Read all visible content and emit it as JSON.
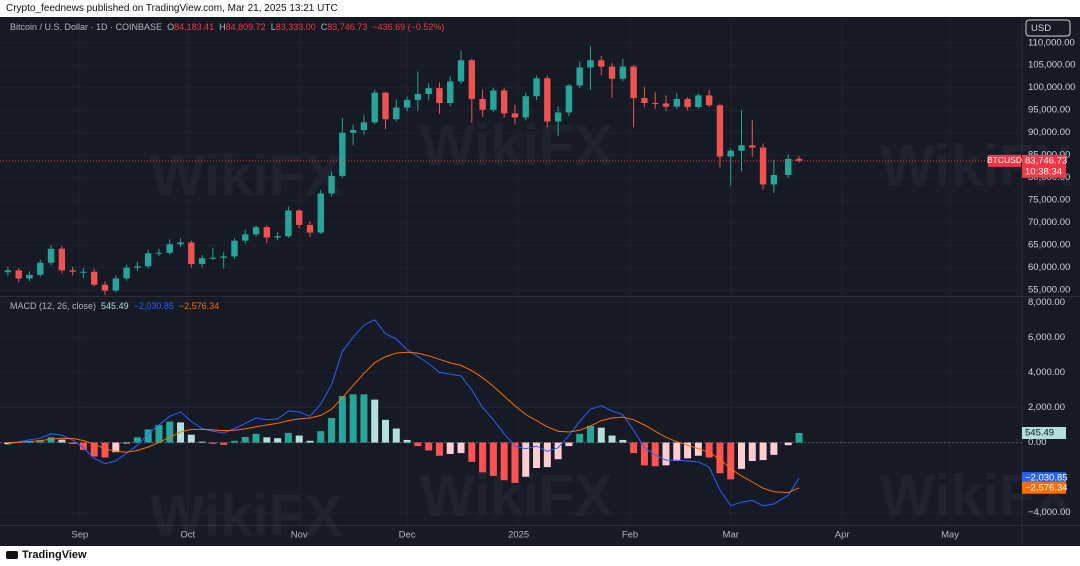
{
  "header": "Crypto_feednews published on TradingView.com, Mar 21, 2025 13:21 UTC",
  "footer_logo": "TradingView",
  "watermark": "WikiFX",
  "chart_data": [
    {
      "type": "candlestick",
      "title": "Bitcoin / U.S. Dollar · 1D · COINBASE",
      "ohlc_legend": [
        {
          "letter": "O",
          "text": "84,183.41"
        },
        {
          "letter": "H",
          "text": "84,809.72"
        },
        {
          "letter": "L",
          "text": "83,333.00"
        },
        {
          "letter": "C",
          "text": "83,746.73"
        }
      ],
      "change_label": "−436.69 (−0.52%)",
      "currency": "USD",
      "symbol": "BTCUSD",
      "countdown": "10:38:34",
      "last_label": "83,746.73",
      "x": [
        0,
        3,
        6,
        9,
        12,
        15,
        18,
        21,
        24,
        27,
        30,
        33,
        36,
        39,
        42,
        45,
        48,
        51,
        54,
        57,
        60,
        63,
        66,
        69,
        72,
        75,
        78,
        81,
        84,
        87,
        90,
        93,
        96,
        99,
        102,
        105,
        108,
        111,
        114,
        117,
        120,
        123,
        126,
        129,
        132,
        135,
        138,
        141,
        144,
        147,
        150,
        153,
        156,
        159,
        162,
        165,
        168,
        171,
        174,
        177,
        180,
        183,
        186,
        189,
        192,
        195,
        198,
        201,
        204,
        207,
        210,
        213,
        217,
        220
      ],
      "open": [
        59000,
        59400,
        57600,
        58400,
        61100,
        64200,
        59400,
        59100,
        59100,
        56200,
        54900,
        57600,
        60000,
        60300,
        63200,
        63300,
        65200,
        65600,
        60800,
        62100,
        62200,
        62500,
        66000,
        67400,
        69000,
        66700,
        67000,
        72700,
        69500,
        67800,
        76500,
        80400,
        90000,
        90600,
        92300,
        98900,
        93000,
        95600,
        97300,
        98600,
        99900,
        96600,
        101400,
        106100,
        97500,
        95100,
        99400,
        94300,
        93400,
        98100,
        102100,
        92500,
        94500,
        100500,
        104500,
        106100,
        104700,
        102000,
        104700,
        97700,
        96600,
        96500,
        95800,
        97500,
        95700,
        98300,
        96100,
        84700,
        86000,
        87200,
        86700,
        78500,
        80600,
        84183.41
      ],
      "high": [
        60200,
        59900,
        59200,
        61800,
        65000,
        64800,
        60200,
        59900,
        59800,
        57000,
        58300,
        60700,
        61300,
        64000,
        64200,
        66300,
        66500,
        66000,
        62800,
        64400,
        63400,
        66500,
        68400,
        69400,
        69400,
        68000,
        73600,
        73000,
        70300,
        77300,
        81400,
        93300,
        91800,
        94000,
        99600,
        99100,
        97400,
        98000,
        103600,
        101000,
        101200,
        102500,
        108300,
        106500,
        99500,
        100000,
        100000,
        96200,
        98900,
        102700,
        102700,
        95800,
        100800,
        105800,
        109300,
        107100,
        105500,
        106400,
        105000,
        100200,
        99000,
        98300,
        98800,
        97900,
        98700,
        99500,
        96500,
        86500,
        95000,
        92800,
        87600,
        84000,
        85200,
        84809.72
      ],
      "low": [
        58200,
        56800,
        57000,
        58000,
        60500,
        58700,
        58300,
        57700,
        55800,
        53900,
        54600,
        57100,
        59300,
        59900,
        62600,
        62900,
        64600,
        60000,
        60100,
        61700,
        59800,
        62000,
        65300,
        66900,
        65400,
        66100,
        66600,
        68800,
        66800,
        67500,
        75800,
        80000,
        87200,
        89500,
        91900,
        90800,
        92500,
        94800,
        94900,
        97200,
        94200,
        95900,
        100800,
        92200,
        93500,
        94600,
        93400,
        91800,
        92700,
        97300,
        91200,
        89300,
        93700,
        99900,
        99500,
        102800,
        97800,
        101400,
        91200,
        95700,
        95300,
        94800,
        95300,
        95000,
        95300,
        95700,
        82300,
        78200,
        81400,
        84700,
        77400,
        76600,
        80000,
        83333
      ],
      "close": [
        59400,
        57600,
        58400,
        61100,
        64200,
        59400,
        59100,
        59100,
        56200,
        54900,
        57600,
        60000,
        60300,
        63200,
        63300,
        65200,
        65600,
        60800,
        62100,
        62200,
        62500,
        66000,
        67400,
        69000,
        66700,
        67000,
        72700,
        69500,
        67800,
        76500,
        80400,
        90000,
        90600,
        92300,
        98900,
        93000,
        95600,
        97300,
        98600,
        99900,
        96600,
        101400,
        106100,
        97500,
        95100,
        99400,
        94300,
        93400,
        98100,
        102100,
        92500,
        94500,
        100500,
        104500,
        106100,
        104700,
        102000,
        104700,
        97700,
        96600,
        96500,
        95800,
        97500,
        95700,
        98300,
        96100,
        84700,
        86000,
        87200,
        86700,
        78500,
        80600,
        84180,
        83746.73
      ],
      "up_color": "#26a69a",
      "down_color": "#ef5350",
      "xlim": [
        -2.2,
        282
      ],
      "xticks": [
        {
          "value": 20,
          "label": "Sep"
        },
        {
          "value": 50,
          "label": "Oct"
        },
        {
          "value": 81,
          "label": "Nov"
        },
        {
          "value": 111,
          "label": "Dec"
        },
        {
          "value": 142,
          "label": "2025"
        },
        {
          "value": 173,
          "label": "Feb"
        },
        {
          "value": 201,
          "label": "Mar"
        },
        {
          "value": 232,
          "label": "Apr"
        },
        {
          "value": 262,
          "label": "May"
        }
      ],
      "ylim": [
        53700,
        115500
      ],
      "yticks": [
        {
          "value": 55000,
          "label": "55,000.00"
        },
        {
          "value": 60000,
          "label": "60,000.00"
        },
        {
          "value": 65000,
          "label": "65,000.00"
        },
        {
          "value": 70000,
          "label": "70,000.00"
        },
        {
          "value": 75000,
          "label": "75,000.00"
        },
        {
          "value": 80000,
          "label": "80,000.00"
        },
        {
          "value": 85000,
          "label": "85,000.00"
        },
        {
          "value": 90000,
          "label": "90,000.00"
        },
        {
          "value": 95000,
          "label": "95,000.00"
        },
        {
          "value": 100000,
          "label": "100,000.00"
        },
        {
          "value": 105000,
          "label": "105,000.00"
        },
        {
          "value": 110000,
          "label": "110,000.00"
        }
      ],
      "grid": true
    },
    {
      "type": "macd",
      "title": "MACD (12, 26, close)",
      "series": [
        {
          "kind": "histogram",
          "colors": [
            "#26a69a",
            "#b2dfdb",
            "#ffcdd2",
            "#ff5252"
          ],
          "last_label": "545.49",
          "values": [
            -100,
            30,
            90,
            150,
            300,
            170,
            -80,
            -420,
            -800,
            -850,
            -550,
            -50,
            300,
            750,
            1000,
            1200,
            1150,
            450,
            50,
            -70,
            -130,
            100,
            320,
            500,
            300,
            250,
            550,
            400,
            100,
            650,
            1400,
            2650,
            2750,
            2750,
            2450,
            1300,
            800,
            150,
            -200,
            -450,
            -750,
            -650,
            -600,
            -1100,
            -1700,
            -1900,
            -2150,
            -2300,
            -1950,
            -1450,
            -1400,
            -950,
            -200,
            500,
            950,
            850,
            400,
            150,
            -600,
            -1300,
            -1350,
            -1300,
            -1050,
            -900,
            -750,
            -850,
            -1750,
            -2100,
            -1500,
            -1050,
            -1000,
            -700,
            -150,
            545.49
          ]
        },
        {
          "kind": "line",
          "color": "#2962ff",
          "last_label": "−2,030.85",
          "values": [
            -100,
            50,
            150,
            250,
            500,
            420,
            150,
            -300,
            -900,
            -1200,
            -1050,
            -600,
            -150,
            500,
            1000,
            1500,
            1750,
            1200,
            800,
            650,
            550,
            800,
            1100,
            1400,
            1300,
            1350,
            1800,
            1750,
            1500,
            2200,
            3300,
            5200,
            6000,
            6700,
            7000,
            6200,
            5900,
            5300,
            4900,
            4500,
            4000,
            3900,
            3800,
            3000,
            2000,
            1300,
            500,
            -200,
            -350,
            -200,
            -500,
            -300,
            400,
            1200,
            1900,
            2100,
            1800,
            1600,
            700,
            -300,
            -700,
            -1000,
            -1000,
            -1050,
            -1100,
            -1400,
            -2700,
            -3600,
            -3400,
            -3300,
            -3600,
            -3500,
            -3000,
            -2030.85
          ]
        },
        {
          "kind": "line",
          "color": "#ff6d00",
          "last_label": "−2,576.34",
          "values": [
            0,
            20,
            60,
            100,
            200,
            250,
            230,
            120,
            -100,
            -350,
            -500,
            -550,
            -450,
            -250,
            0,
            300,
            600,
            750,
            750,
            720,
            680,
            700,
            780,
            900,
            1000,
            1100,
            1250,
            1350,
            1400,
            1550,
            1900,
            2550,
            3250,
            3950,
            4550,
            4900,
            5100,
            5150,
            5100,
            4950,
            4750,
            4550,
            4400,
            4100,
            3700,
            3200,
            2650,
            2100,
            1600,
            1250,
            900,
            650,
            600,
            700,
            950,
            1250,
            1400,
            1450,
            1300,
            1000,
            650,
            300,
            50,
            -150,
            -350,
            -550,
            -950,
            -1500,
            -1900,
            -2250,
            -2600,
            -2800,
            -2850,
            -2576.34
          ]
        }
      ],
      "ylim": [
        -4700,
        8300
      ],
      "yticks": [
        {
          "value": -4000,
          "label": "−4,000.00"
        },
        {
          "value": 0,
          "label": "0.00"
        },
        {
          "value": 2000,
          "label": "2,000.00"
        },
        {
          "value": 4000,
          "label": "4,000.00"
        },
        {
          "value": 6000,
          "label": "6,000.00"
        },
        {
          "value": 8000,
          "label": "8,000.00"
        }
      ],
      "grid": true
    }
  ]
}
